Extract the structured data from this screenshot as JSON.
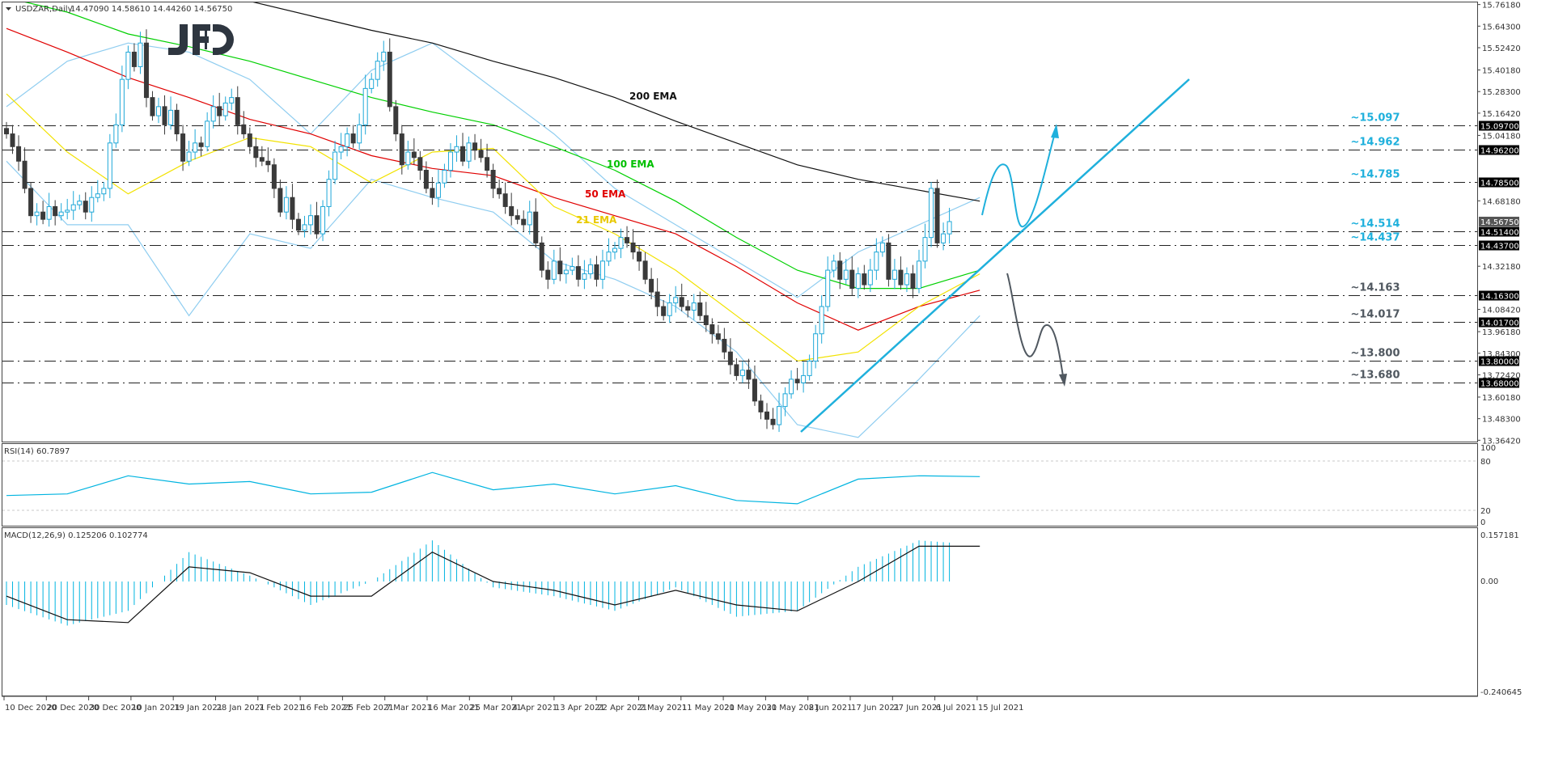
{
  "header": {
    "symbol": "USDZAR,Daily",
    "ohlc": "14.47090 14.58610 14.44260 14.56750"
  },
  "logo": {
    "text": "JFD",
    "color": "#2e3640"
  },
  "rsi": {
    "label": "RSI(14) 60.7897",
    "ticks": [
      "100",
      "80",
      "20",
      "0"
    ]
  },
  "macd": {
    "label": "MACD(12,26,9) 0.125206 0.102774",
    "ticks": [
      "0.157181",
      "0.00",
      "-0.240645"
    ]
  },
  "colors": {
    "bull": "#1fa8d8",
    "bear": "#3a3a3a",
    "ema21": "#f2e200",
    "ema50": "#e00000",
    "ema100": "#00d000",
    "ema200": "#111111",
    "bands": "#8fcdf0",
    "rsi": "#00b4e0",
    "macd_hist": "#00b4e0",
    "annotation_blue": "#1fb0dc",
    "annotation_gray": "#505860"
  },
  "chart_data": {
    "type": "candlestick",
    "title": "USDZAR,Daily",
    "ylim": [
      13.3642,
      15.7618
    ],
    "grid": false,
    "price_ticks": [
      "15.76180",
      "15.64300",
      "15.52420",
      "15.40180",
      "15.28300",
      "15.16420",
      "15.04180",
      "14.92300",
      "14.80420",
      "14.68180",
      "14.32180",
      "14.20300",
      "14.08420",
      "13.96180",
      "13.84300",
      "13.72420",
      "13.60180",
      "13.48300",
      "13.36420"
    ],
    "x_ticks": [
      "10 Dec 2020",
      "20 Dec 2020",
      "30 Dec 2020",
      "10 Jan 2021",
      "19 Jan 2021",
      "28 Jan 2021",
      "7 Feb 2021",
      "16 Feb 2021",
      "25 Feb 2021",
      "7 Mar 2021",
      "16 Mar 2021",
      "25 Mar 2021",
      "4 Apr 2021",
      "13 Apr 2021",
      "22 Apr 2021",
      "2 May 2021",
      "11 May 2021",
      "20 May 2021",
      "30 May 2021",
      "8 Jun 2021",
      "17 Jun 2021",
      "27 Jun 2021",
      "6 Jul 2021",
      "15 Jul 2021"
    ],
    "close": [
      15.05,
      14.98,
      14.9,
      14.75,
      14.6,
      14.62,
      14.58,
      14.65,
      14.6,
      14.62,
      14.63,
      14.66,
      14.68,
      14.62,
      14.7,
      14.72,
      14.75,
      15.0,
      15.1,
      15.35,
      15.5,
      15.42,
      15.55,
      15.25,
      15.15,
      15.2,
      15.1,
      15.18,
      15.05,
      14.9,
      14.95,
      15.0,
      14.98,
      15.12,
      15.2,
      15.15,
      15.22,
      15.25,
      15.1,
      15.05,
      14.98,
      14.92,
      14.9,
      14.88,
      14.75,
      14.62,
      14.7,
      14.58,
      14.52,
      14.55,
      14.6,
      14.5,
      14.65,
      14.8,
      14.95,
      14.98,
      15.05,
      15.0,
      15.1,
      15.3,
      15.35,
      15.45,
      15.5,
      15.2,
      15.05,
      14.88,
      14.95,
      14.92,
      14.85,
      14.75,
      14.7,
      14.78,
      14.85,
      14.95,
      14.98,
      14.9,
      15.0,
      14.96,
      14.92,
      14.85,
      14.75,
      14.72,
      14.65,
      14.6,
      14.58,
      14.55,
      14.62,
      14.45,
      14.3,
      14.25,
      14.35,
      14.28,
      14.3,
      14.32,
      14.25,
      14.28,
      14.33,
      14.25,
      14.35,
      14.4,
      14.42,
      14.48,
      14.45,
      14.4,
      14.35,
      14.25,
      14.18,
      14.1,
      14.05,
      14.12,
      14.15,
      14.1,
      14.08,
      14.12,
      14.05,
      14.0,
      13.95,
      13.92,
      13.85,
      13.78,
      13.72,
      13.75,
      13.7,
      13.58,
      13.52,
      13.48,
      13.45,
      13.55,
      13.62,
      13.7,
      13.68,
      13.72,
      13.8,
      13.95,
      14.1,
      14.3,
      14.35,
      14.25,
      14.3,
      14.2,
      14.28,
      14.22,
      14.3,
      14.4,
      14.45,
      14.25,
      14.3,
      14.22,
      14.28,
      14.2,
      14.35,
      14.48,
      14.75,
      14.45,
      14.5,
      14.5675
    ],
    "current_price": "14.56750",
    "series_sampled_every_10_bars": {
      "ema200": [
        16.08,
        16.0,
        15.93,
        15.85,
        15.78,
        15.7,
        15.62,
        15.55,
        15.45,
        15.36,
        15.25,
        15.12,
        15.0,
        14.88,
        14.8,
        14.74,
        14.68
      ],
      "ema100": [
        15.8,
        15.72,
        15.6,
        15.53,
        15.45,
        15.35,
        15.25,
        15.17,
        15.1,
        14.98,
        14.85,
        14.68,
        14.48,
        14.3,
        14.2,
        14.2,
        14.3
      ],
      "ema50": [
        15.63,
        15.5,
        15.36,
        15.25,
        15.13,
        15.05,
        14.93,
        14.86,
        14.82,
        14.7,
        14.6,
        14.5,
        14.32,
        14.12,
        13.97,
        14.1,
        14.19
      ],
      "ema21": [
        15.27,
        14.95,
        14.72,
        14.9,
        15.03,
        14.98,
        14.78,
        14.95,
        14.97,
        14.65,
        14.5,
        14.3,
        14.05,
        13.8,
        13.85,
        14.1,
        14.28
      ],
      "band_upper": [
        15.2,
        15.45,
        15.55,
        15.5,
        15.35,
        15.05,
        15.4,
        15.55,
        15.3,
        15.05,
        14.75,
        14.55,
        14.35,
        14.15,
        14.4,
        14.55,
        14.7
      ],
      "band_lower": [
        14.9,
        14.55,
        14.55,
        14.05,
        14.5,
        14.42,
        14.8,
        14.7,
        14.62,
        14.35,
        14.25,
        14.1,
        13.85,
        13.45,
        13.38,
        13.7,
        14.05
      ],
      "rsi": [
        38,
        40,
        62,
        52,
        55,
        40,
        42,
        66,
        45,
        52,
        40,
        50,
        32,
        28,
        58,
        62,
        61
      ],
      "macd_main": [
        -0.08,
        -0.15,
        -0.1,
        0.1,
        0.02,
        -0.08,
        0.0,
        0.14,
        -0.02,
        -0.05,
        -0.1,
        -0.02,
        -0.12,
        -0.1,
        0.05,
        0.14,
        0.125
      ],
      "macd_signal": [
        -0.05,
        -0.13,
        -0.14,
        0.05,
        0.03,
        -0.05,
        -0.05,
        0.1,
        0.0,
        -0.03,
        -0.08,
        -0.03,
        -0.08,
        -0.1,
        0.0,
        0.12,
        0.12
      ]
    },
    "ema_labels": [
      {
        "text": "200 EMA",
        "color": "#111111"
      },
      {
        "text": "100 EMA",
        "color": "#00c000"
      },
      {
        "text": "50 EMA",
        "color": "#e00000"
      },
      {
        "text": "21 EMA",
        "color": "#e8c800"
      }
    ],
    "levels": [
      {
        "price": 15.097,
        "axis": "15.09700",
        "label": "~15.097",
        "tone": "blue"
      },
      {
        "price": 14.962,
        "axis": "14.96200",
        "label": "~14.962",
        "tone": "blue"
      },
      {
        "price": 14.785,
        "axis": "14.78500",
        "label": "~14.785",
        "tone": "blue"
      },
      {
        "price": 14.514,
        "axis": "14.51400",
        "label": "~14.514",
        "tone": "blue"
      },
      {
        "price": 14.437,
        "axis": "14.43700",
        "label": "~14.437",
        "tone": "blue"
      },
      {
        "price": 14.163,
        "axis": "14.16300",
        "label": "~14.163",
        "tone": "gray"
      },
      {
        "price": 14.017,
        "axis": "14.01700",
        "label": "~14.017",
        "tone": "gray"
      },
      {
        "price": 13.8,
        "axis": "13.80000",
        "label": "~13.800",
        "tone": "gray"
      },
      {
        "price": 13.68,
        "axis": "13.68000",
        "label": "~13.680",
        "tone": "gray"
      }
    ]
  }
}
